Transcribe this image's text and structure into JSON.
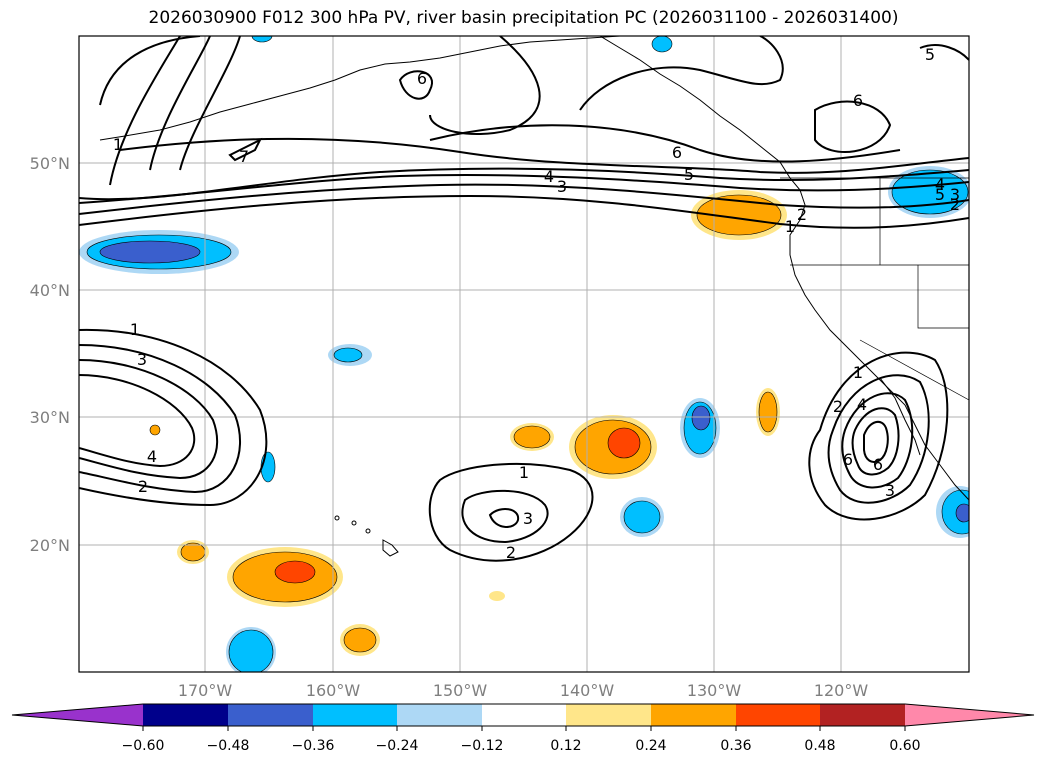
{
  "title": "2026030900 F012 300 hPa PV, river basin precipitation PC (2026031100 - 2026031400)",
  "map": {
    "lat_labels": [
      "50°N",
      "40°N",
      "30°N",
      "20°N"
    ],
    "lon_labels": [
      "170°W",
      "160°W",
      "150°W",
      "140°W",
      "130°W",
      "120°W"
    ]
  },
  "colors": {
    "border": "#000000",
    "grid": "#b0b0b0",
    "pv_contour": "#000000",
    "pos_light": "#ffe68a",
    "pos_mid": "#ffa500",
    "pos_strong": "#ff4500",
    "neg_light": "#add8f5",
    "neg_mid": "#00bfff",
    "neg_strong": "#3a5fcd"
  },
  "pv_contour_labels": [
    "1",
    "2",
    "3",
    "4",
    "5",
    "6",
    "7",
    "5",
    "6",
    "6",
    "5",
    "4",
    "3",
    "2",
    "1",
    "1",
    "3",
    "4",
    "2",
    "1",
    "2",
    "3",
    "2",
    "4",
    "6",
    "3",
    "1",
    "6"
  ],
  "colorbar": {
    "bins": [
      {
        "color": "#9932cc"
      },
      {
        "color": "#00008b"
      },
      {
        "color": "#3a5fcd"
      },
      {
        "color": "#00bfff"
      },
      {
        "color": "#add8f5"
      },
      {
        "color": "#ffffff"
      },
      {
        "color": "#ffe68a"
      },
      {
        "color": "#ffa500"
      },
      {
        "color": "#ff4500"
      },
      {
        "color": "#b22222"
      },
      {
        "color": "#ff88aa"
      }
    ],
    "tick_labels": [
      "−0.60",
      "−0.48",
      "−0.36",
      "−0.24",
      "−0.12",
      "0.12",
      "0.24",
      "0.36",
      "0.48",
      "0.60"
    ]
  }
}
